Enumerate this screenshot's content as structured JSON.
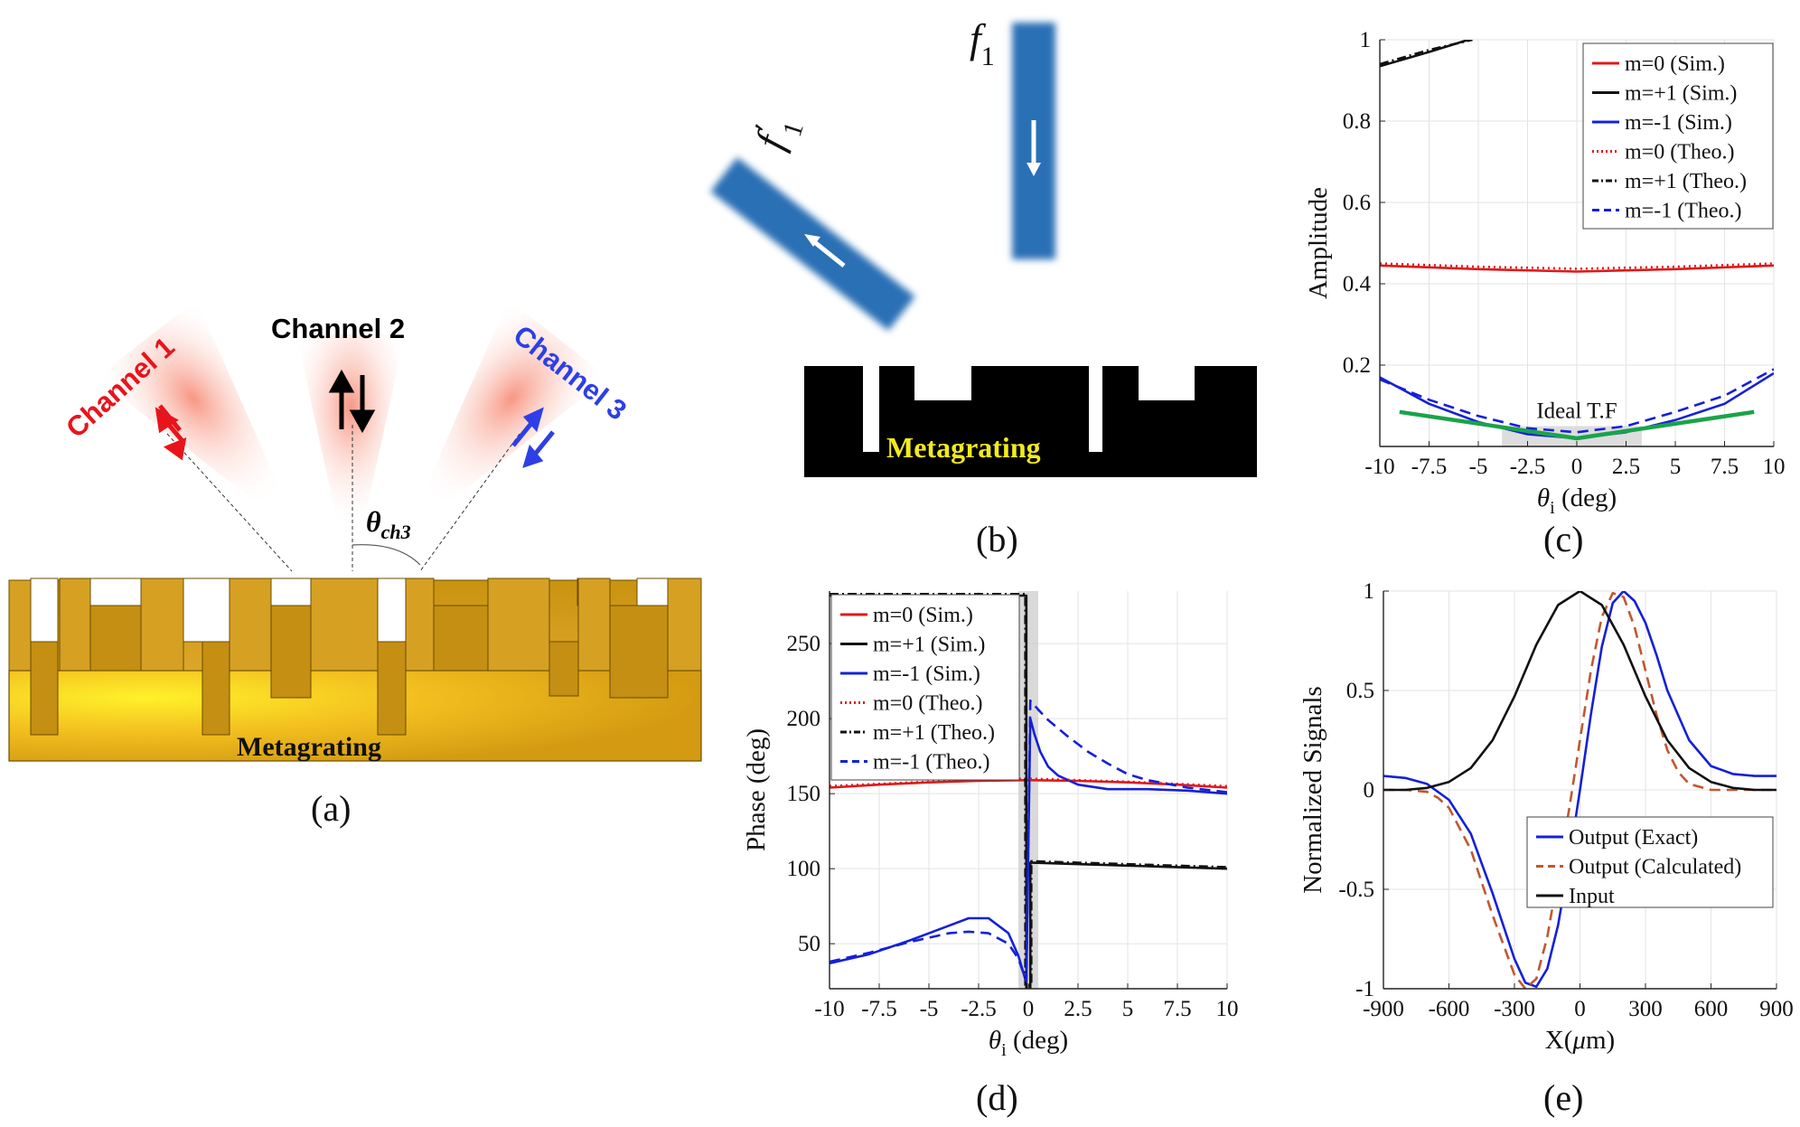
{
  "panel_a": {
    "caption": "(a)",
    "channel1": "Channel 1",
    "channel2": "Channel 2",
    "channel3": "Channel 3",
    "theta_label": "θch3",
    "theta_main": "θ",
    "theta_sub": "ch3",
    "metagrating_label": "Metagrating",
    "colors": {
      "ch1": "#e8141c",
      "ch2": "#000000",
      "ch3": "#2d3fe6",
      "gold": "#d9a21a"
    }
  },
  "panel_b": {
    "caption": "(b)",
    "beam_in_label": "f1",
    "beam_out_label": "f'1",
    "f": "f",
    "sub": "1",
    "prime": "′",
    "metagrating_label": "Metagrating",
    "colors": {
      "beam": "#2b6fb5",
      "label": "#f2ea1c"
    }
  },
  "chart_data": [
    {
      "panel": "(c)",
      "type": "line",
      "xlabel": "θi (deg)",
      "xlabel_main": "θ",
      "xlabel_sub": "i",
      "xlabel_rest": " (deg)",
      "ylabel": "Amplitude",
      "xlim": [
        -10,
        10
      ],
      "ylim": [
        0,
        1
      ],
      "xticks": [
        -10,
        -7.5,
        -5,
        -2.5,
        0,
        2.5,
        5,
        7.5,
        10
      ],
      "yticks": [
        0.2,
        0.4,
        0.6,
        0.8,
        1
      ],
      "xtick_labels": [
        "-10",
        "-7.5",
        "-5",
        "-2.5",
        "0",
        "2.5",
        "5",
        "7.5",
        "10"
      ],
      "ytick_labels": [
        "0.2",
        "0.4",
        "0.6",
        "0.8",
        "1"
      ],
      "grid": true,
      "legend_position": "top-right",
      "annotation": "Ideal T.F",
      "shaded_band": [
        -3.8,
        3.3
      ],
      "series": [
        {
          "name": "m=0 (Sim.)",
          "color": "#e0181b",
          "dash": "solid",
          "x": [
            -10,
            -5,
            0,
            5,
            10
          ],
          "y": [
            0.445,
            0.436,
            0.43,
            0.436,
            0.445
          ]
        },
        {
          "name": "m=+1 (Sim.)",
          "color": "#111111",
          "dash": "solid",
          "x": [
            -10,
            -7.5,
            -5.5
          ],
          "y": [
            0.935,
            0.97,
            1.0
          ]
        },
        {
          "name": "m=-1 (Sim.)",
          "color": "#1520d8",
          "dash": "solid",
          "x": [
            -10,
            -7.5,
            -5,
            -2.5,
            0,
            2.5,
            5,
            7.5,
            10
          ],
          "y": [
            0.17,
            0.105,
            0.06,
            0.03,
            0.02,
            0.035,
            0.065,
            0.105,
            0.18
          ]
        },
        {
          "name": "m=0 (Theo.)",
          "color": "#e0181b",
          "dash": "dot",
          "x": [
            -10,
            -5,
            0,
            5,
            10
          ],
          "y": [
            0.45,
            0.442,
            0.437,
            0.442,
            0.45
          ]
        },
        {
          "name": "m=+1 (Theo.)",
          "color": "#111111",
          "dash": "dashdot",
          "x": [
            -10,
            -7.5,
            -5.3
          ],
          "y": [
            0.94,
            0.975,
            1.0
          ]
        },
        {
          "name": "m=-1 (Theo.)",
          "color": "#1520d8",
          "dash": "dash",
          "x": [
            -10,
            -7.5,
            -5,
            -2.5,
            0,
            2.5,
            5,
            7.5,
            10
          ],
          "y": [
            0.165,
            0.115,
            0.075,
            0.045,
            0.035,
            0.05,
            0.085,
            0.125,
            0.19
          ]
        },
        {
          "name": "Ideal T.F",
          "color": "#1aa34a",
          "dash": "solid",
          "legend": false,
          "x": [
            -9,
            0,
            9
          ],
          "y": [
            0.085,
            0.02,
            0.085
          ]
        }
      ]
    },
    {
      "panel": "(d)",
      "type": "line",
      "xlabel": "θi (deg)",
      "xlabel_main": "θ",
      "xlabel_sub": "i",
      "xlabel_rest": " (deg)",
      "ylabel": "Phase (deg)",
      "xlim": [
        -10,
        10
      ],
      "ylim": [
        20,
        285
      ],
      "xticks": [
        -10,
        -7.5,
        -5,
        -2.5,
        0,
        2.5,
        5,
        7.5,
        10
      ],
      "yticks": [
        50,
        100,
        150,
        200,
        250
      ],
      "xtick_labels": [
        "-10",
        "-7.5",
        "-5",
        "-2.5",
        "0",
        "2.5",
        "5",
        "7.5",
        "10"
      ],
      "ytick_labels": [
        "50",
        "100",
        "150",
        "200",
        "250"
      ],
      "grid": true,
      "legend_position": "top-left",
      "shaded_band": [
        -0.5,
        0.5
      ],
      "series": [
        {
          "name": "m=0 (Sim.)",
          "color": "#e0181b",
          "dash": "solid",
          "x": [
            -10,
            -7.5,
            -5,
            -2.5,
            0,
            2.5,
            5,
            7.5,
            10
          ],
          "y": [
            154,
            156,
            157.5,
            158.5,
            159,
            158.5,
            157.5,
            156,
            154
          ]
        },
        {
          "name": "m=+1 (Sim.)",
          "color": "#111111",
          "dash": "solid",
          "x": [
            -10,
            -0.1,
            -0.1,
            0.1,
            0.1,
            5,
            10
          ],
          "y": [
            282,
            282,
            20,
            20,
            104,
            102,
            100
          ]
        },
        {
          "name": "m=-1 (Sim.)",
          "color": "#1520d8",
          "dash": "solid",
          "x": [
            -10,
            -8,
            -6,
            -4,
            -3,
            -2,
            -1,
            -0.5,
            -0.1,
            0.1,
            0.3,
            0.6,
            1,
            1.5,
            2.5,
            4,
            6,
            8,
            10
          ],
          "y": [
            37,
            43,
            52,
            62,
            67,
            67,
            57,
            42,
            24,
            200,
            190,
            178,
            168,
            162,
            156,
            153,
            153,
            152,
            150
          ]
        },
        {
          "name": "m=0 (Theo.)",
          "color": "#e0181b",
          "dash": "dot",
          "x": [
            -10,
            -5,
            0,
            5,
            10
          ],
          "y": [
            155,
            158,
            160,
            158,
            155
          ]
        },
        {
          "name": "m=+1 (Theo.)",
          "color": "#111111",
          "dash": "dashdot",
          "x": [
            -10,
            -0.15,
            -0.15,
            0.15,
            0.15,
            5,
            10
          ],
          "y": [
            283,
            283,
            22,
            22,
            105,
            103,
            101
          ]
        },
        {
          "name": "m=-1 (Theo.)",
          "color": "#1520d8",
          "dash": "dash",
          "x": [
            -10,
            -8,
            -6,
            -4,
            -3,
            -2,
            -1,
            -0.5,
            -0.1,
            0.1,
            0.5,
            1,
            2,
            3,
            4,
            5,
            6,
            8,
            10
          ],
          "y": [
            38,
            44,
            51,
            57,
            58,
            57,
            50,
            40,
            25,
            212,
            206,
            199,
            188,
            178,
            170,
            163,
            159,
            154,
            151
          ]
        }
      ]
    },
    {
      "panel": "(e)",
      "type": "line",
      "xlabel": "X(μm)",
      "xlabel_main": "X(",
      "xlabel_mu": "μ",
      "xlabel_rest": "m)",
      "ylabel": "Normalized Signals",
      "xlim": [
        -900,
        900
      ],
      "ylim": [
        -1,
        1
      ],
      "xticks": [
        -900,
        -600,
        -300,
        0,
        300,
        600,
        900
      ],
      "yticks": [
        -1,
        -0.5,
        0,
        0.5,
        1
      ],
      "xtick_labels": [
        "-900",
        "-600",
        "-300",
        "0",
        "300",
        "600",
        "900"
      ],
      "ytick_labels": [
        "-1",
        "-0.5",
        "0",
        "0.5",
        "1"
      ],
      "grid": true,
      "legend_position": "bottom-right",
      "series": [
        {
          "name": "Output (Exact)",
          "color": "#1520d8",
          "dash": "solid",
          "x": [
            -900,
            -800,
            -700,
            -600,
            -500,
            -400,
            -300,
            -250,
            -200,
            -150,
            -100,
            -50,
            0,
            50,
            100,
            150,
            200,
            250,
            300,
            350,
            400,
            500,
            600,
            700,
            800,
            900
          ],
          "y": [
            0.07,
            0.06,
            0.03,
            -0.05,
            -0.22,
            -0.52,
            -0.85,
            -0.97,
            -0.99,
            -0.9,
            -0.68,
            -0.36,
            0.0,
            0.38,
            0.72,
            0.94,
            1.0,
            0.95,
            0.84,
            0.68,
            0.5,
            0.25,
            0.12,
            0.08,
            0.07,
            0.07
          ]
        },
        {
          "name": "Output (Calculated)",
          "color": "#c0582f",
          "dash": "dash",
          "x": [
            -900,
            -800,
            -700,
            -650,
            -600,
            -500,
            -400,
            -300,
            -250,
            -200,
            -150,
            -100,
            -50,
            0,
            50,
            100,
            150,
            200,
            250,
            300,
            350,
            400,
            450,
            500,
            600,
            700,
            800,
            900
          ],
          "y": [
            0.0,
            0.0,
            -0.01,
            -0.04,
            -0.09,
            -0.3,
            -0.63,
            -0.93,
            -1.0,
            -0.95,
            -0.74,
            -0.43,
            -0.1,
            0.25,
            0.6,
            0.87,
            0.99,
            0.97,
            0.82,
            0.6,
            0.38,
            0.2,
            0.09,
            0.03,
            0.0,
            0.0,
            0.0,
            0.0
          ]
        },
        {
          "name": "Input",
          "color": "#111111",
          "dash": "solid",
          "x": [
            -900,
            -800,
            -700,
            -600,
            -500,
            -400,
            -300,
            -200,
            -100,
            0,
            100,
            200,
            300,
            400,
            500,
            600,
            700,
            800,
            900
          ],
          "y": [
            0.0,
            0.0,
            0.01,
            0.04,
            0.11,
            0.25,
            0.47,
            0.73,
            0.93,
            1.0,
            0.93,
            0.73,
            0.47,
            0.25,
            0.11,
            0.04,
            0.01,
            0.0,
            0.0
          ]
        }
      ]
    }
  ]
}
